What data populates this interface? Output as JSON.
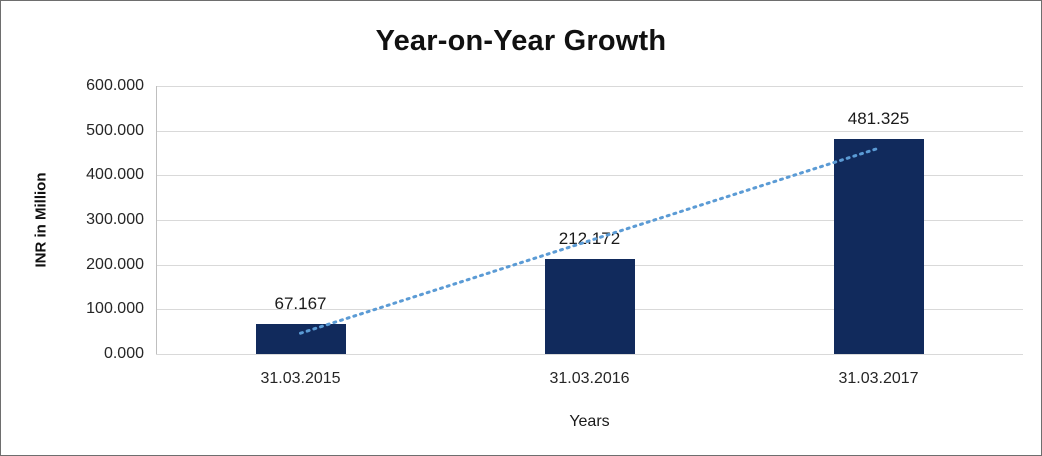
{
  "chart_data": {
    "type": "bar",
    "title": "Year-on-Year Growth",
    "xlabel": "Years",
    "ylabel": "INR in Million",
    "categories": [
      "31.03.2015",
      "31.03.2016",
      "31.03.2017"
    ],
    "values": [
      67.167,
      212.172,
      481.325
    ],
    "data_labels": [
      "67.167",
      "212.172",
      "481.325"
    ],
    "ylim": [
      0,
      600
    ],
    "ytick_step": 100,
    "ytick_labels": [
      "0.000",
      "100.000",
      "200.000",
      "300.000",
      "400.000",
      "500.000",
      "600.000"
    ],
    "grid": true,
    "legend": "none",
    "bar_color": "#112A5C",
    "trendline_color": "#5B9BD5",
    "trendline_style": "dotted",
    "gridline_color": "#d9d9d9"
  }
}
